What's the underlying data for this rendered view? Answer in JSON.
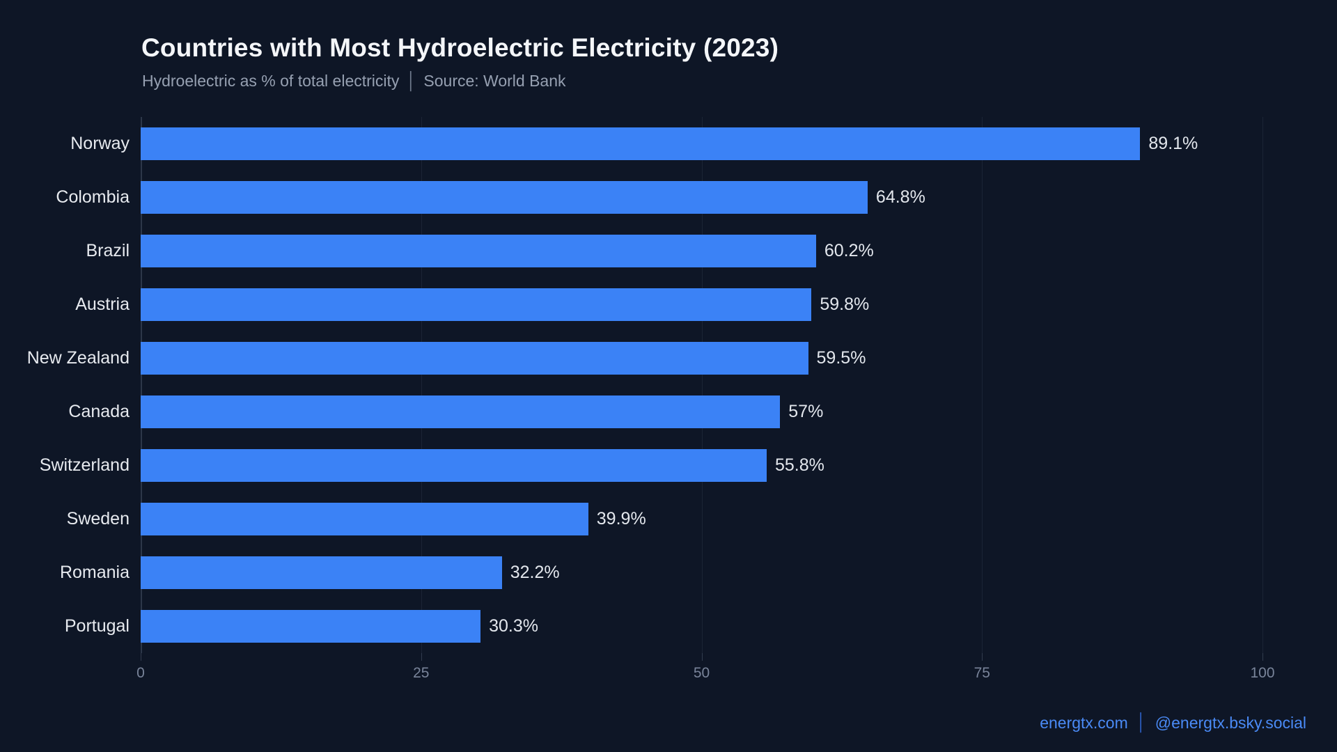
{
  "header": {
    "title": "Countries with Most Hydroelectric Electricity (2023)",
    "subtitle": "Hydroelectric as % of total electricity",
    "separator": "│",
    "source": "Source: World Bank"
  },
  "chart_data": {
    "type": "bar",
    "orientation": "horizontal",
    "title": "Countries with Most Hydroelectric Electricity (2023)",
    "xlabel": "Hydroelectric as % of total electricity",
    "categories": [
      "Norway",
      "Colombia",
      "Brazil",
      "Austria",
      "New Zealand",
      "Canada",
      "Switzerland",
      "Sweden",
      "Romania",
      "Portugal"
    ],
    "values": [
      89.1,
      64.8,
      60.2,
      59.8,
      59.5,
      57,
      55.8,
      39.9,
      32.2,
      30.3
    ],
    "value_labels": [
      "89.1%",
      "64.8%",
      "60.2%",
      "59.8%",
      "59.5%",
      "57%",
      "55.8%",
      "39.9%",
      "32.2%",
      "30.3%"
    ],
    "xlim": [
      0,
      100
    ],
    "xticks": [
      0,
      25,
      50,
      75,
      100
    ],
    "xtick_labels": [
      "0",
      "25",
      "50",
      "75",
      "100"
    ],
    "grid": "vertical",
    "legend": "none",
    "bar_color": "#3b82f6",
    "background_color": "#0e1626"
  },
  "footer": {
    "site": "energtx.com",
    "separator": "│",
    "handle": "@energtx.bsky.social"
  }
}
